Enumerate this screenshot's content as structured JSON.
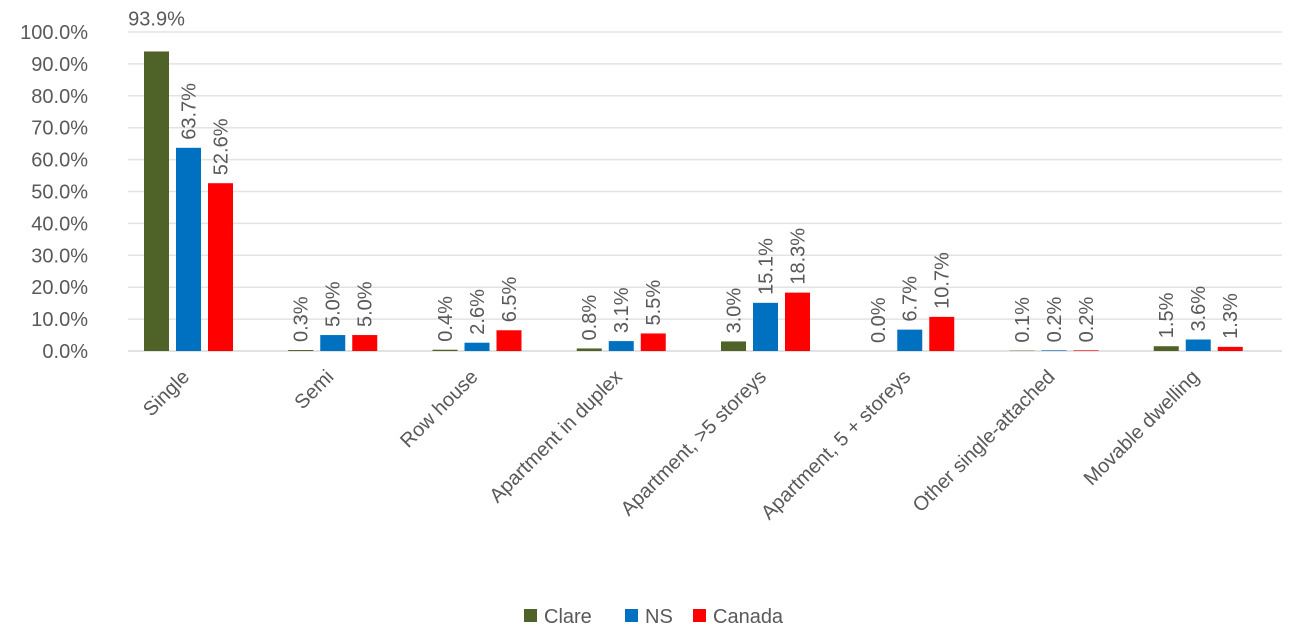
{
  "chart_data": {
    "type": "bar",
    "categories": [
      "Single",
      "Semi",
      "Row house",
      "Apartment in duplex",
      "Apartment, >5 storeys",
      "Apartment, 5 + storeys",
      "Other single-attached",
      "Movable dwelling"
    ],
    "series": [
      {
        "name": "Clare",
        "color": "#4f6228",
        "values": [
          93.9,
          0.3,
          0.4,
          0.8,
          3.0,
          0.0,
          0.1,
          1.5
        ],
        "labels": [
          "93.9%",
          "0.3%",
          "0.4%",
          "0.8%",
          "3.0%",
          "0.0%",
          "0.1%",
          "1.5%"
        ]
      },
      {
        "name": "NS",
        "color": "#0070c0",
        "values": [
          63.7,
          5.0,
          2.6,
          3.1,
          15.1,
          6.7,
          0.2,
          3.6
        ],
        "labels": [
          "63.7%",
          "5.0%",
          "2.6%",
          "3.1%",
          "15.1%",
          "6.7%",
          "0.2%",
          "3.6%"
        ]
      },
      {
        "name": "Canada",
        "color": "#ff0000",
        "values": [
          52.6,
          5.0,
          6.5,
          5.5,
          18.3,
          10.7,
          0.2,
          1.3
        ],
        "labels": [
          "52.6%",
          "5.0%",
          "6.5%",
          "5.5%",
          "18.3%",
          "10.7%",
          "0.2%",
          "1.3%"
        ]
      }
    ],
    "yticks": [
      "0.0%",
      "10.0%",
      "20.0%",
      "30.0%",
      "40.0%",
      "50.0%",
      "60.0%",
      "70.0%",
      "80.0%",
      "90.0%",
      "100.0%"
    ],
    "ylim": [
      0,
      100
    ],
    "grid": true,
    "legend_position": "bottom"
  }
}
